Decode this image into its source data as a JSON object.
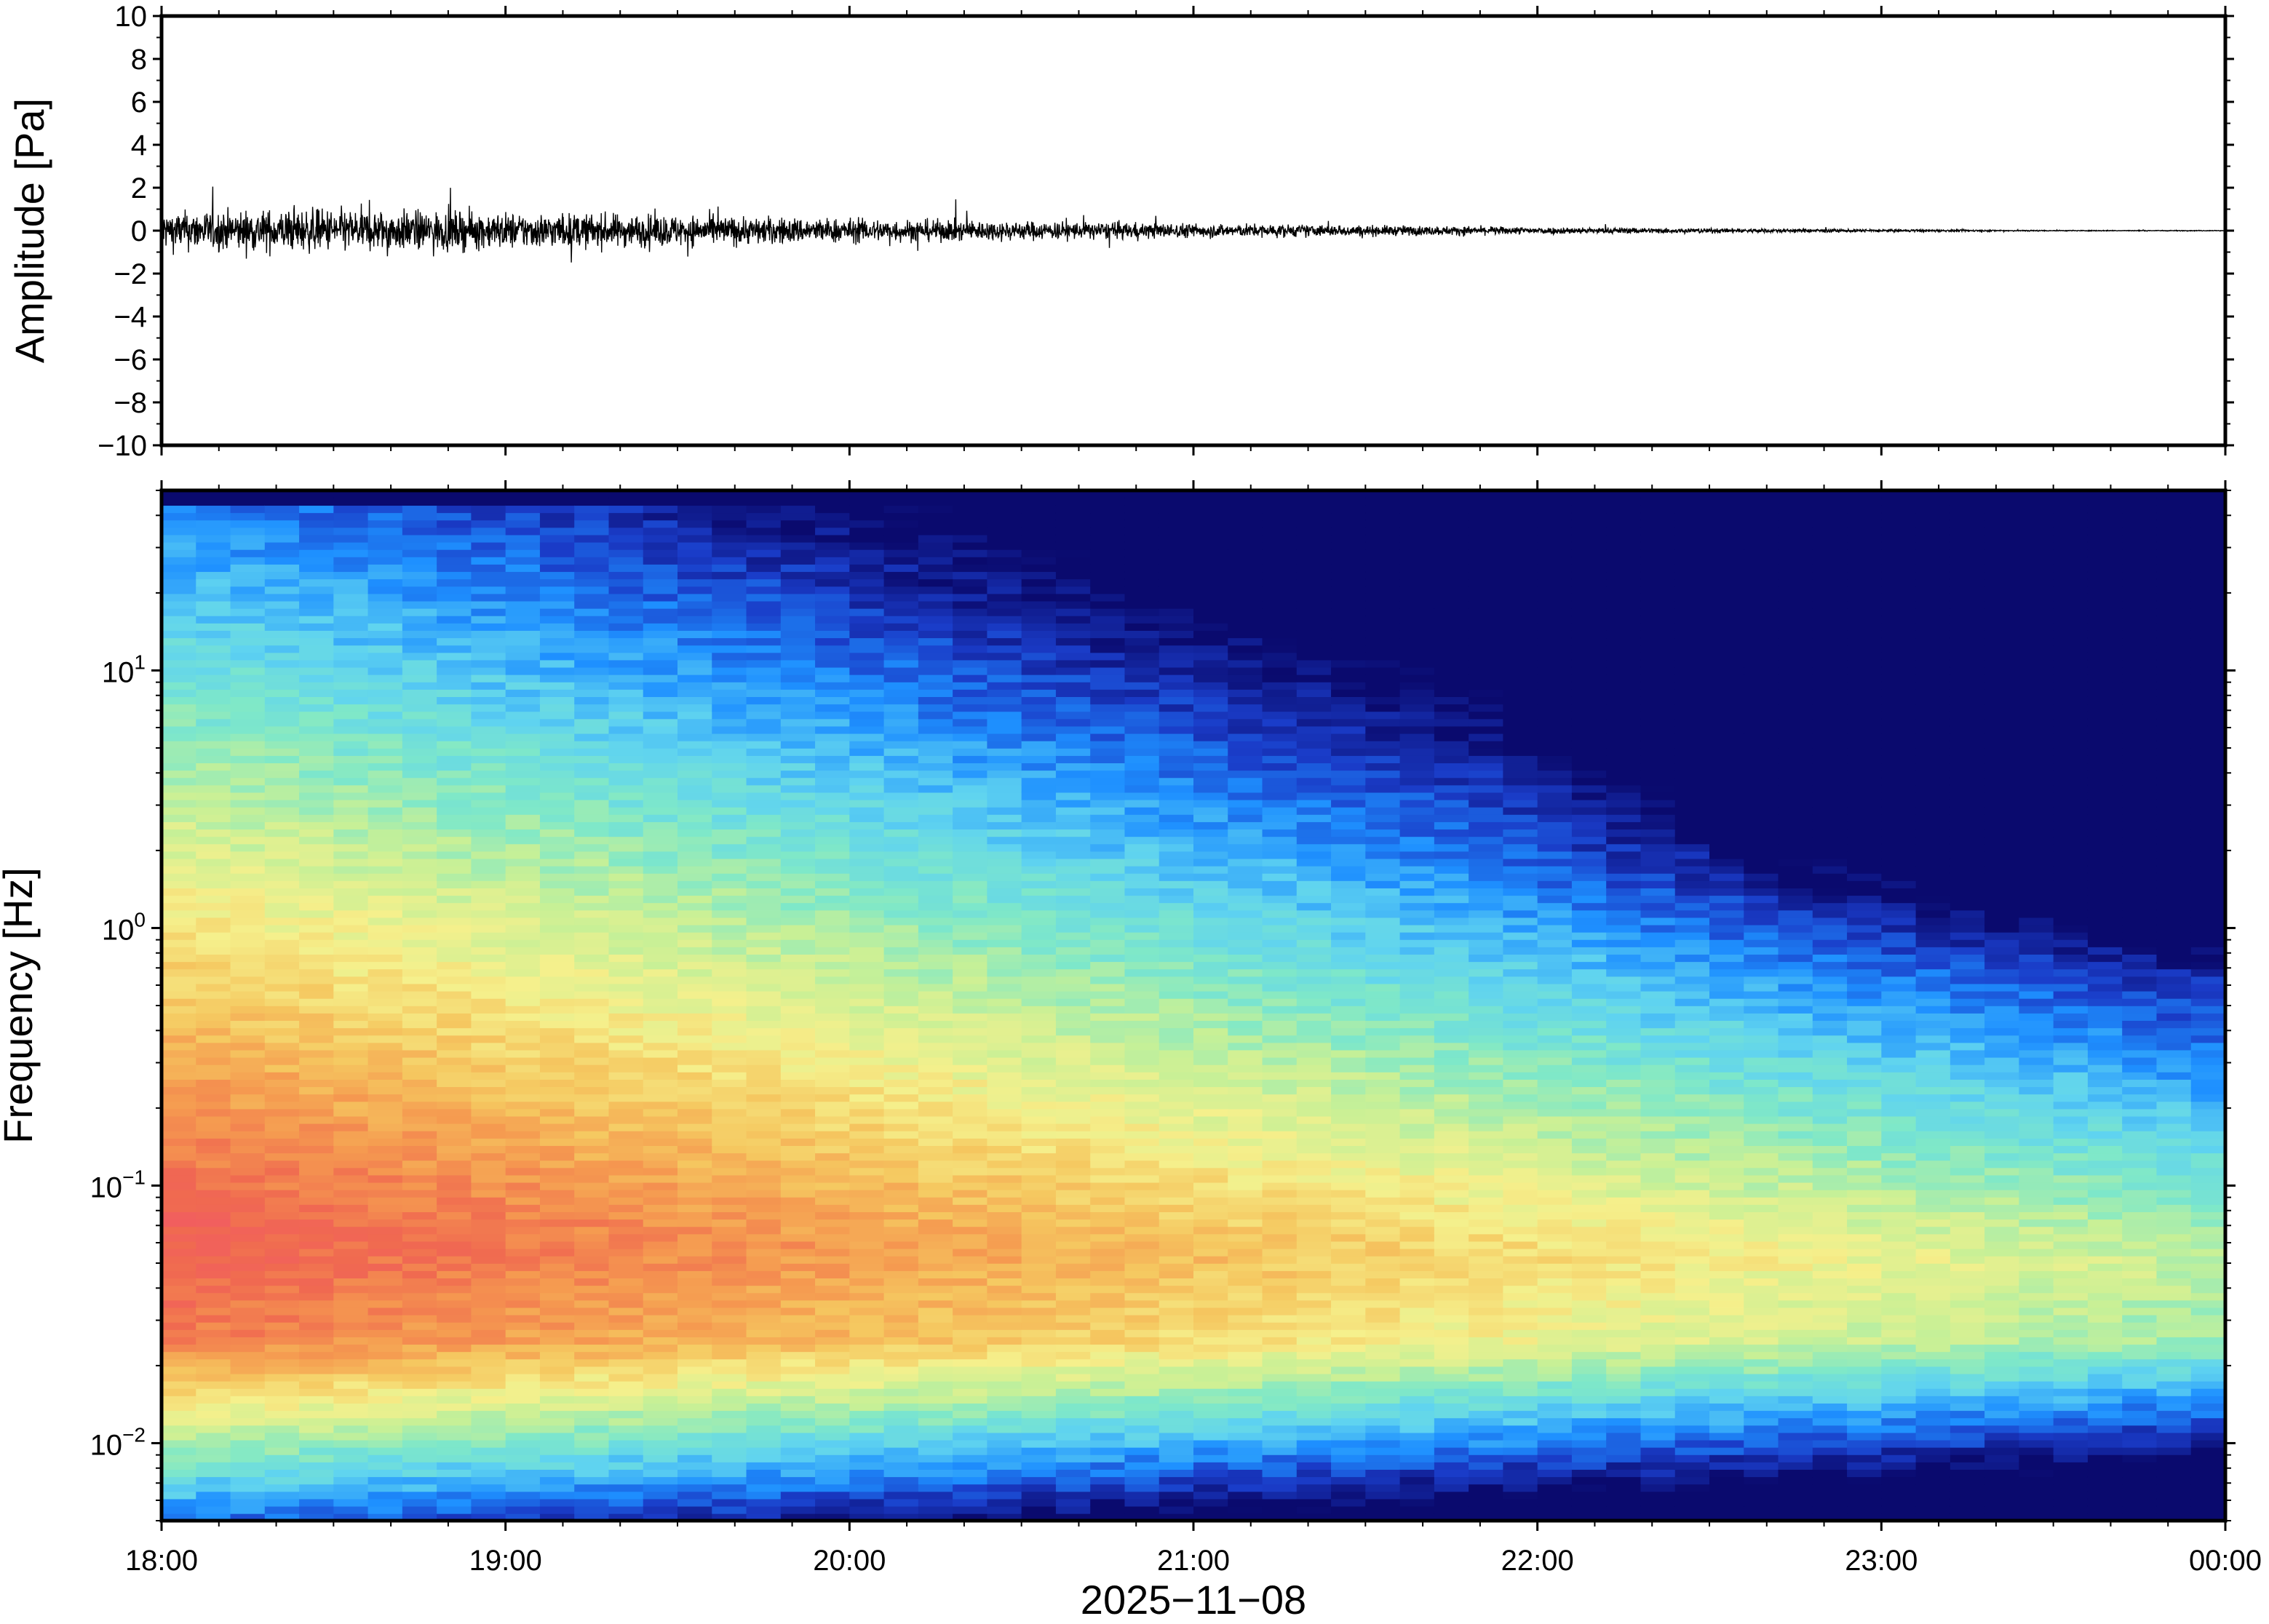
{
  "chart_data": [
    {
      "type": "line",
      "name": "waveform",
      "ylabel": "Amplitude [Pa]",
      "ylim": [
        -10,
        10
      ],
      "yticks": [
        10,
        8,
        6,
        4,
        2,
        0,
        -2,
        -4,
        -6,
        -8,
        -10
      ],
      "ytick_labels": [
        "10",
        "8",
        "6",
        "4",
        "2",
        "0",
        "−2",
        "−4",
        "−6",
        "−8",
        "−10"
      ],
      "x_range": [
        "18:00",
        "00:00"
      ],
      "envelope": [
        {
          "t": "18:00",
          "amp": 1.6
        },
        {
          "t": "18:30",
          "amp": 1.8
        },
        {
          "t": "19:00",
          "amp": 1.5
        },
        {
          "t": "19:30",
          "amp": 1.3
        },
        {
          "t": "20:00",
          "amp": 1.0
        },
        {
          "t": "20:30",
          "amp": 0.8
        },
        {
          "t": "21:00",
          "amp": 0.6
        },
        {
          "t": "21:30",
          "amp": 0.45
        },
        {
          "t": "22:00",
          "amp": 0.3
        },
        {
          "t": "22:30",
          "amp": 0.2
        },
        {
          "t": "23:00",
          "amp": 0.12
        },
        {
          "t": "23:30",
          "amp": 0.04
        },
        {
          "t": "00:00",
          "amp": 0.03
        }
      ],
      "grid": false
    },
    {
      "type": "heatmap",
      "name": "spectrogram",
      "ylabel": "Frequency [Hz]",
      "xlabel": "2025−11−08",
      "yscale": "log",
      "ylim": [
        0.005,
        50
      ],
      "yticks": [
        {
          "value": 0.01,
          "base": "10",
          "exp": "−2"
        },
        {
          "value": 0.1,
          "base": "10",
          "exp": "−1"
        },
        {
          "value": 1,
          "base": "10",
          "exp": "0"
        },
        {
          "value": 10,
          "base": "10",
          "exp": "1"
        }
      ],
      "xticks": [
        "18:00",
        "19:00",
        "20:00",
        "21:00",
        "22:00",
        "23:00",
        "00:00"
      ],
      "x_range": [
        "18:00",
        "00:00"
      ],
      "colormap": [
        "#0a0a6e",
        "#1a3cc8",
        "#1e90ff",
        "#5fd3f0",
        "#7fe8c8",
        "#c8f096",
        "#f5f08c",
        "#f5c860",
        "#f59a50",
        "#f06a50",
        "#f25a64"
      ],
      "grid": false
    }
  ],
  "colors": {
    "frame": "#000000",
    "trace": "#000000",
    "background": "#ffffff"
  }
}
